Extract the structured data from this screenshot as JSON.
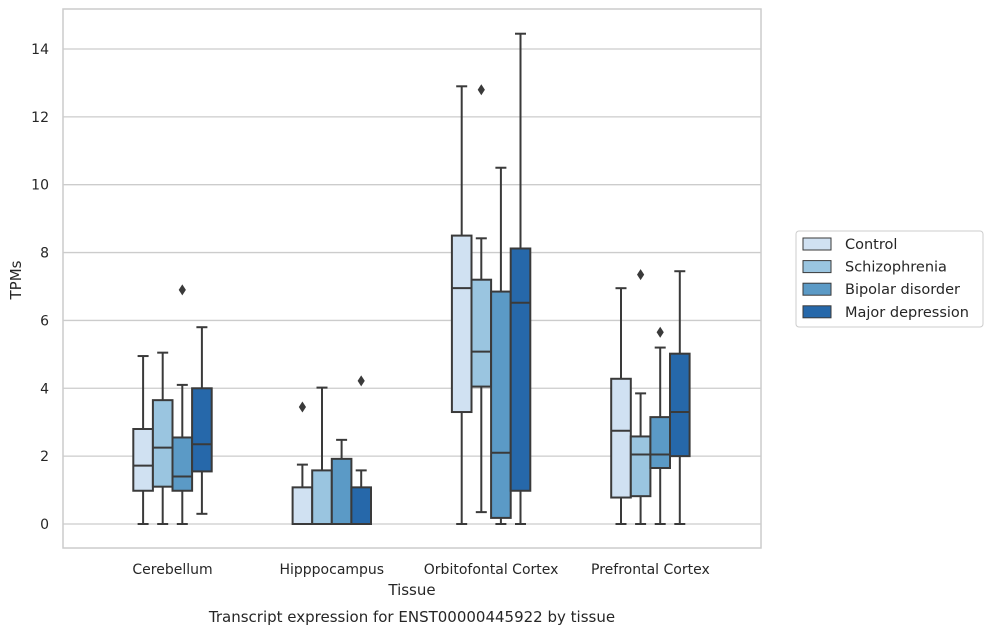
{
  "caption": "Transcript expression for ENST00000445922 by tissue",
  "chart_data": {
    "type": "box",
    "title": "",
    "xlabel": "Tissue",
    "ylabel": "TPMs",
    "ylim": [
      -0.7,
      15.2
    ],
    "yticks": [
      0,
      2,
      4,
      6,
      8,
      10,
      12,
      14
    ],
    "grid": true,
    "legend_position": "right",
    "categories": [
      "Cerebellum",
      "Hipppocampus",
      "Orbitofontal Cortex",
      "Prefrontal Cortex"
    ],
    "series": [
      {
        "name": "Control",
        "color": "#d0e1f2",
        "boxes": [
          {
            "whislo": 0,
            "q1": 0.98,
            "med": 1.72,
            "q3": 2.8,
            "whishi": 4.95,
            "fliers": []
          },
          {
            "whislo": 0,
            "q1": 0,
            "med": 0,
            "q3": 1.08,
            "whishi": 1.75,
            "fliers": [
              3.45
            ]
          },
          {
            "whislo": 0,
            "q1": 3.3,
            "med": 6.95,
            "q3": 8.5,
            "whishi": 12.9,
            "fliers": []
          },
          {
            "whislo": 0,
            "q1": 0.78,
            "med": 2.75,
            "q3": 4.28,
            "whishi": 6.95,
            "fliers": []
          }
        ]
      },
      {
        "name": "Schizophrenia",
        "color": "#9ac5e0",
        "boxes": [
          {
            "whislo": 0,
            "q1": 1.1,
            "med": 2.25,
            "q3": 3.65,
            "whishi": 5.05,
            "fliers": []
          },
          {
            "whislo": 0,
            "q1": 0,
            "med": 0,
            "q3": 1.58,
            "whishi": 4.02,
            "fliers": []
          },
          {
            "whislo": 0.35,
            "q1": 4.05,
            "med": 5.08,
            "q3": 7.2,
            "whishi": 8.42,
            "fliers": [
              12.8
            ]
          },
          {
            "whislo": 0,
            "q1": 0.82,
            "med": 2.05,
            "q3": 2.58,
            "whishi": 3.85,
            "fliers": [
              7.35
            ]
          }
        ]
      },
      {
        "name": "Bipolar disorder",
        "color": "#5b9ac6",
        "boxes": [
          {
            "whislo": 0,
            "q1": 0.98,
            "med": 1.4,
            "q3": 2.55,
            "whishi": 4.1,
            "fliers": [
              6.9
            ]
          },
          {
            "whislo": 0,
            "q1": 0,
            "med": 0,
            "q3": 1.92,
            "whishi": 2.48,
            "fliers": []
          },
          {
            "whislo": 0,
            "q1": 0.18,
            "med": 2.1,
            "q3": 6.85,
            "whishi": 10.5,
            "fliers": []
          },
          {
            "whislo": 0,
            "q1": 1.65,
            "med": 2.05,
            "q3": 3.15,
            "whishi": 5.2,
            "fliers": [
              5.65
            ]
          }
        ]
      },
      {
        "name": "Major depression",
        "color": "#2668aa",
        "boxes": [
          {
            "whislo": 0.3,
            "q1": 1.55,
            "med": 2.35,
            "q3": 4.0,
            "whishi": 5.8,
            "fliers": []
          },
          {
            "whislo": 0,
            "q1": 0,
            "med": 0,
            "q3": 1.08,
            "whishi": 1.58,
            "fliers": [
              4.22
            ]
          },
          {
            "whislo": 0,
            "q1": 0.98,
            "med": 6.52,
            "q3": 8.12,
            "whishi": 14.45,
            "fliers": []
          },
          {
            "whislo": 0,
            "q1": 2.0,
            "med": 3.3,
            "q3": 5.02,
            "whishi": 7.45,
            "fliers": []
          }
        ]
      }
    ]
  }
}
